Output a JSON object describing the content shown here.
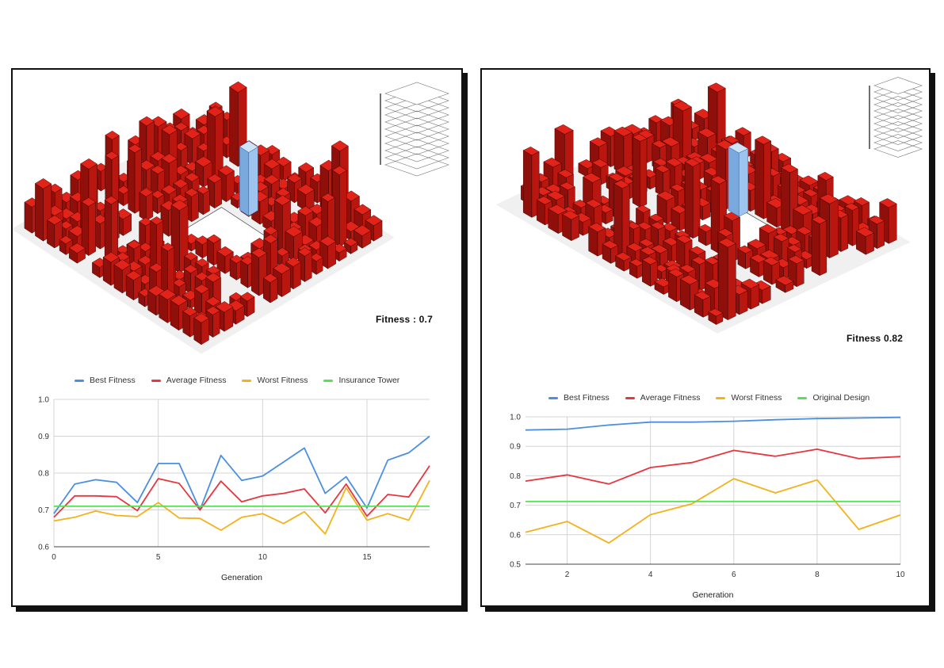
{
  "colors": {
    "best": "#4a8fe0",
    "average": "#e8363f",
    "worst": "#f3b21c",
    "reference": "#55e255",
    "building": "#e2231a",
    "building_dark": "#8f0f0a",
    "tower": "#9cc4ee"
  },
  "left": {
    "fitness_label": "Fitness : 0.7",
    "legend": [
      "Best Fitness",
      "Average Fitness",
      "Worst Fitness",
      "Insurance Tower"
    ]
  },
  "right": {
    "fitness_label": "Fitness 0.82",
    "legend": [
      "Best Fitness",
      "Average Fitness",
      "Worst Fitness",
      "Original Design"
    ]
  },
  "chart_data": [
    {
      "type": "line",
      "xlabel": "Generation",
      "ylabel": "",
      "xlim": [
        0,
        18
      ],
      "ylim": [
        0.6,
        1.0
      ],
      "x_ticks": [
        0,
        5,
        10,
        15
      ],
      "y_ticks": [
        0.6,
        0.7,
        0.8,
        0.9,
        1.0
      ],
      "grid": true,
      "legend_position": "top",
      "x": [
        0,
        1,
        2,
        3,
        4,
        5,
        6,
        7,
        8,
        9,
        10,
        11,
        12,
        13,
        14,
        15,
        16,
        17,
        18
      ],
      "series": [
        {
          "name": "Best Fitness",
          "color_key": "best",
          "values": [
            0.69,
            0.77,
            0.782,
            0.775,
            0.72,
            0.826,
            0.826,
            0.7,
            0.848,
            0.78,
            0.792,
            0.83,
            0.868,
            0.745,
            0.79,
            0.705,
            0.835,
            0.855,
            0.9
          ]
        },
        {
          "name": "Average Fitness",
          "color_key": "average",
          "values": [
            0.68,
            0.738,
            0.738,
            0.736,
            0.698,
            0.785,
            0.772,
            0.7,
            0.778,
            0.722,
            0.738,
            0.745,
            0.757,
            0.692,
            0.77,
            0.683,
            0.742,
            0.735,
            0.82
          ]
        },
        {
          "name": "Worst Fitness",
          "color_key": "worst",
          "values": [
            0.67,
            0.68,
            0.697,
            0.685,
            0.682,
            0.72,
            0.678,
            0.677,
            0.645,
            0.68,
            0.69,
            0.663,
            0.695,
            0.635,
            0.76,
            0.672,
            0.69,
            0.672,
            0.78
          ]
        },
        {
          "name": "Insurance Tower",
          "color_key": "reference",
          "values": [
            0.71,
            0.71,
            0.71,
            0.71,
            0.71,
            0.71,
            0.71,
            0.71,
            0.71,
            0.71,
            0.71,
            0.71,
            0.71,
            0.71,
            0.71,
            0.71,
            0.71,
            0.71,
            0.71
          ]
        }
      ]
    },
    {
      "type": "line",
      "xlabel": "Generation",
      "ylabel": "",
      "xlim": [
        1,
        10
      ],
      "ylim": [
        0.5,
        1.0
      ],
      "x_ticks": [
        2,
        4,
        6,
        8,
        10
      ],
      "y_ticks": [
        0.5,
        0.6,
        0.7,
        0.8,
        0.9,
        1.0
      ],
      "grid": true,
      "legend_position": "top",
      "x": [
        1,
        2,
        3,
        4,
        5,
        6,
        7,
        8,
        9,
        10
      ],
      "series": [
        {
          "name": "Best Fitness",
          "color_key": "best",
          "values": [
            0.955,
            0.958,
            0.972,
            0.982,
            0.982,
            0.985,
            0.99,
            0.994,
            0.996,
            0.998
          ]
        },
        {
          "name": "Average Fitness",
          "color_key": "average",
          "values": [
            0.782,
            0.803,
            0.772,
            0.828,
            0.845,
            0.886,
            0.866,
            0.89,
            0.858,
            0.865
          ]
        },
        {
          "name": "Worst Fitness",
          "color_key": "worst",
          "values": [
            0.608,
            0.645,
            0.572,
            0.668,
            0.705,
            0.79,
            0.742,
            0.786,
            0.618,
            0.667
          ]
        },
        {
          "name": "Original Design",
          "color_key": "reference",
          "values": [
            0.713,
            0.713,
            0.713,
            0.713,
            0.713,
            0.713,
            0.713,
            0.713,
            0.713,
            0.713
          ]
        }
      ]
    }
  ]
}
